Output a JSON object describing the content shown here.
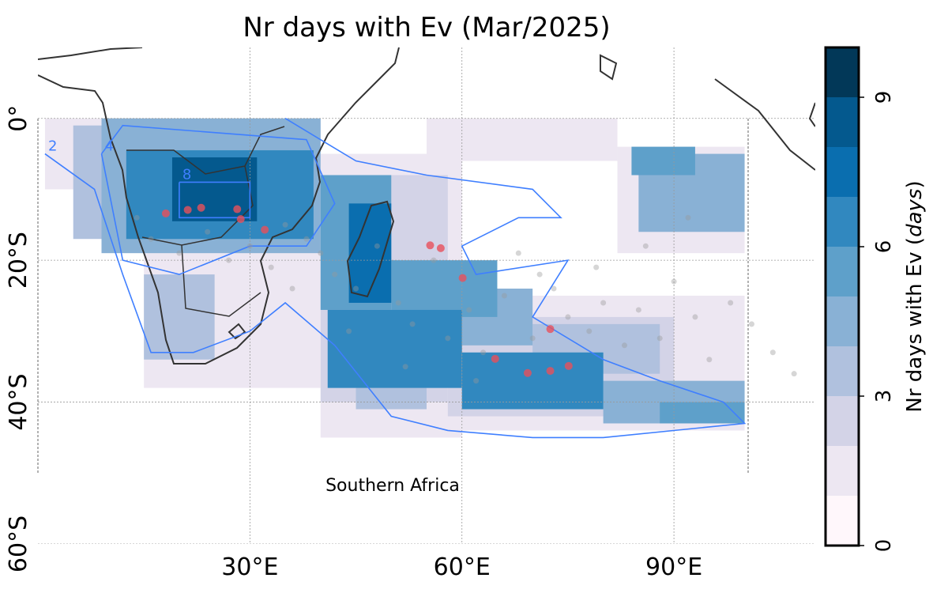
{
  "map": {
    "title": "Nr days with Ev (Mar/2025)",
    "extent": {
      "lon": [
        0,
        110
      ],
      "lat": [
        -60,
        10
      ]
    },
    "lon_ticks": [
      {
        "value": 30,
        "label": "30°E"
      },
      {
        "value": 60,
        "label": "60°E"
      },
      {
        "value": 90,
        "label": "90°E"
      }
    ],
    "lat_ticks": [
      {
        "value": 0,
        "label": "0°"
      },
      {
        "value": -20,
        "label": "20°S"
      },
      {
        "value": -40,
        "label": "40°S"
      },
      {
        "value": -60,
        "label": "60°S"
      }
    ],
    "grid": true,
    "region_label": "Southern Africa",
    "colorbar": {
      "label_prefix": "Nr days with Ev (",
      "unit": "days",
      "label_suffix": ")",
      "lim": [
        0,
        10
      ],
      "ticks": [
        0,
        3,
        6,
        9
      ],
      "colors": [
        "#fff7fb",
        "#ede7f2",
        "#d3d3e7",
        "#b0c1de",
        "#89b1d5",
        "#5ea0ca",
        "#3188bf",
        "#0a6eaf",
        "#04598e",
        "#023858"
      ]
    },
    "field": [
      {
        "lon": [
          1,
          18
        ],
        "lat": [
          -10,
          0
        ],
        "value": 1
      },
      {
        "lon": [
          15,
          40
        ],
        "lat": [
          -38,
          0
        ],
        "value": 1
      },
      {
        "lon": [
          40,
          60
        ],
        "lat": [
          -45,
          -5
        ],
        "value": 1
      },
      {
        "lon": [
          55,
          82
        ],
        "lat": [
          -6,
          0
        ],
        "value": 1
      },
      {
        "lon": [
          60,
          100
        ],
        "lat": [
          -44,
          -25
        ],
        "value": 1
      },
      {
        "lon": [
          82,
          100
        ],
        "lat": [
          -19,
          -4
        ],
        "value": 1
      },
      {
        "lon": [
          40,
          58
        ],
        "lat": [
          -40,
          -8
        ],
        "value": 2
      },
      {
        "lon": [
          58,
          90
        ],
        "lat": [
          -42,
          -28
        ],
        "value": 2
      },
      {
        "lon": [
          5,
          12.5
        ],
        "lat": [
          -17,
          -1
        ],
        "value": 3
      },
      {
        "lon": [
          15,
          25
        ],
        "lat": [
          -34,
          -22
        ],
        "value": 3
      },
      {
        "lon": [
          70,
          88
        ],
        "lat": [
          -36,
          -29
        ],
        "value": 3
      },
      {
        "lon": [
          45,
          55
        ],
        "lat": [
          -41,
          -38
        ],
        "value": 3
      },
      {
        "lon": [
          9,
          40
        ],
        "lat": [
          -19,
          0
        ],
        "value": 4
      },
      {
        "lon": [
          60,
          70
        ],
        "lat": [
          -32,
          -24
        ],
        "value": 4
      },
      {
        "lon": [
          80,
          100
        ],
        "lat": [
          -43,
          -37
        ],
        "value": 4
      },
      {
        "lon": [
          85,
          100
        ],
        "lat": [
          -16,
          -5
        ],
        "value": 4
      },
      {
        "lon": [
          40,
          50
        ],
        "lat": [
          -27,
          -8
        ],
        "value": 5
      },
      {
        "lon": [
          50,
          65
        ],
        "lat": [
          -28,
          -20
        ],
        "value": 5
      },
      {
        "lon": [
          84,
          93
        ],
        "lat": [
          -8,
          -4
        ],
        "value": 5
      },
      {
        "lon": [
          88,
          100
        ],
        "lat": [
          -43,
          -40
        ],
        "value": 5
      },
      {
        "lon": [
          12.5,
          39
        ],
        "lat": [
          -17,
          -4.5
        ],
        "value": 6
      },
      {
        "lon": [
          41,
          60
        ],
        "lat": [
          -38,
          -27
        ],
        "value": 6
      },
      {
        "lon": [
          60,
          80
        ],
        "lat": [
          -41,
          -33
        ],
        "value": 6
      },
      {
        "lon": [
          44,
          50
        ],
        "lat": [
          -26,
          -12
        ],
        "value": 7
      },
      {
        "lon": [
          19,
          31
        ],
        "lat": [
          -14.5,
          -5.5
        ],
        "value": 8
      }
    ],
    "contour_color": "#3f7fff",
    "contours": [
      {
        "level": 2,
        "lon": [
          1,
          8,
          12,
          16,
          22,
          30,
          35,
          42,
          50,
          58,
          70,
          80,
          100,
          97,
          88,
          80,
          70,
          75,
          62,
          60,
          68,
          74,
          70,
          55,
          45,
          40,
          35
        ],
        "lat": [
          -5,
          -10,
          -22,
          -33,
          -33,
          -30,
          -26,
          -32,
          -42,
          -44,
          -45,
          -45,
          -43,
          -40,
          -37,
          -34,
          -28,
          -20,
          -22,
          -18,
          -14,
          -14,
          -10,
          -8,
          -6,
          -3,
          0
        ]
      },
      {
        "level": 4,
        "lon": [
          9,
          12,
          20,
          30,
          38,
          42,
          38,
          25,
          12,
          9
        ],
        "lat": [
          -5,
          -20,
          -22,
          -18,
          -18,
          -12,
          -3,
          -2,
          -1,
          -5
        ]
      },
      {
        "level": 8,
        "lon": [
          20,
          30,
          30,
          20,
          20
        ],
        "lat": [
          -9,
          -9,
          -14,
          -14,
          -9
        ]
      }
    ],
    "event_color": "#e8505b",
    "events": {
      "lon": [
        18.1,
        21.2,
        23.1,
        28.2,
        28.7,
        32.1,
        55.5,
        57.0,
        60.1,
        72.5,
        64.7,
        69.3,
        72.5,
        75.1
      ],
      "lat": [
        -13.4,
        -12.9,
        -12.6,
        -12.8,
        -14.2,
        -15.7,
        -17.9,
        -18.3,
        -22.5,
        -29.7,
        -33.9,
        -35.9,
        -35.6,
        -34.9
      ]
    },
    "station_color": "#999999",
    "stations": {
      "lon": [
        14,
        16,
        20,
        24,
        27,
        30,
        33,
        35,
        38,
        40,
        42,
        45,
        48,
        51,
        53,
        56,
        58,
        61,
        63,
        66,
        68,
        71,
        73,
        75,
        78,
        80,
        83,
        85,
        88,
        90,
        93,
        95,
        98,
        101,
        104,
        107,
        36,
        44,
        52,
        62,
        70,
        79,
        86,
        92
      ],
      "lat": [
        -14,
        -17,
        -19,
        -16,
        -20,
        -18,
        -21,
        -15,
        -17,
        -19,
        -22,
        -24,
        -18,
        -26,
        -29,
        -20,
        -31,
        -27,
        -33,
        -25,
        -19,
        -22,
        -24,
        -28,
        -30,
        -26,
        -32,
        -27,
        -31,
        -23,
        -28,
        -34,
        -26,
        -29,
        -33,
        -36,
        -24,
        -30,
        -35,
        -37,
        -31,
        -21,
        -18,
        -14
      ]
    }
  }
}
